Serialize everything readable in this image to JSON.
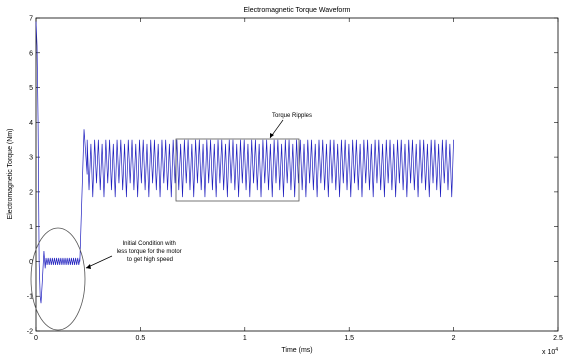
{
  "chart_data": {
    "type": "line",
    "title": "Electromagnetic Torque Waveform",
    "xlabel": "Time (ms)",
    "ylabel": "Electromagnetic Torque (Nm)",
    "x_multiplier_label": "x 10",
    "x_multiplier_exponent": "4",
    "xlim": [
      0,
      2.5
    ],
    "ylim": [
      -2,
      7
    ],
    "x_ticks": [
      0,
      0.5,
      1,
      1.5,
      2,
      2.5
    ],
    "x_tick_labels": [
      "0",
      "0.5",
      "1",
      "1.5",
      "2",
      "2.5"
    ],
    "y_ticks": [
      -2,
      -1,
      0,
      1,
      2,
      3,
      4,
      5,
      6,
      7
    ],
    "y_tick_labels": [
      "-2",
      "-1",
      "0",
      "1",
      "2",
      "3",
      "4",
      "5",
      "6",
      "7"
    ],
    "grid": false,
    "series_color": "#1f1fbf",
    "series": [
      {
        "segments": {
          "startup_spike": {
            "x": [
              0.0,
              0.005,
              0.01,
              0.015,
              0.02
            ],
            "y": [
              6.9,
              6.2,
              4.0,
              0.0,
              -1.0
            ]
          },
          "initial_condition": {
            "x_start": 0.02,
            "x_end": 0.21,
            "mean": 0.0,
            "ripple": 0.1,
            "max": 0.3,
            "min": -1.2
          },
          "rise": {
            "x": [
              0.21,
              0.23,
              0.245
            ],
            "y": [
              0.0,
              3.8,
              2.5
            ]
          },
          "steady_state": {
            "x_start": 0.245,
            "x_end": 2.0,
            "max": 3.5,
            "min": 1.8,
            "cycles": 98
          }
        }
      }
    ],
    "annotations": [
      {
        "text": "Torque Ripples",
        "target_region": {
          "x": [
            0.66,
            1.27
          ],
          "y": [
            1.8,
            3.55
          ]
        }
      },
      {
        "text_lines": [
          "Initial Condition with",
          "less torque for the motor",
          "to get high speed"
        ],
        "target_region": {
          "x": [
            -0.02,
            0.25
          ],
          "y": [
            -2.0,
            1.0
          ]
        }
      }
    ]
  }
}
